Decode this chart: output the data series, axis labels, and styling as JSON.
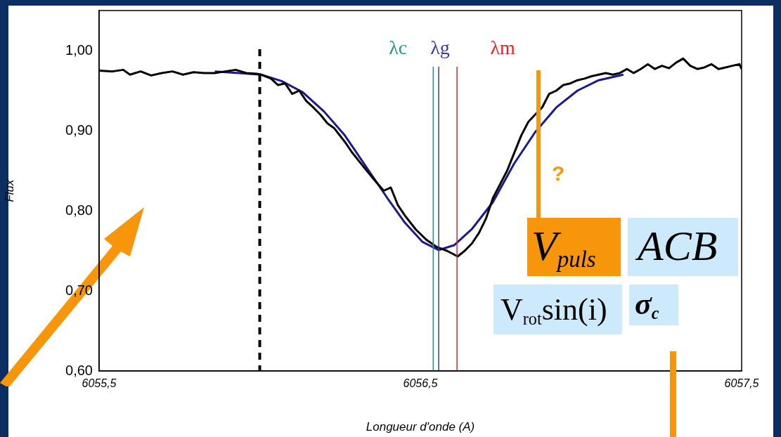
{
  "chart_data": {
    "type": "line",
    "xlabel": "Longueur d'onde (A)",
    "ylabel": "Flux",
    "xlim": [
      6055.5,
      6057.5
    ],
    "xticks": [
      {
        "value": 6055.5,
        "label": "6055,5"
      },
      {
        "value": 6056.5,
        "label": "6056,5"
      },
      {
        "value": 6057.5,
        "label": "6057,5"
      }
    ],
    "ylim": [
      0.6,
      1.05
    ],
    "yticks": [
      {
        "value": 0.6,
        "label": "0,60"
      },
      {
        "value": 0.7,
        "label": "0,70"
      },
      {
        "value": 0.8,
        "label": "0,80"
      },
      {
        "value": 0.9,
        "label": "0,90"
      },
      {
        "value": 1.0,
        "label": "1,00"
      }
    ],
    "grid": false,
    "legend": false,
    "marker": "none",
    "line_style": "solid",
    "series": [
      {
        "color": "#000000",
        "x": [
          6055.5,
          6055.542,
          6055.575,
          6055.596,
          6055.629,
          6055.662,
          6055.695,
          6055.728,
          6055.761,
          6055.794,
          6055.827,
          6055.86,
          6055.893,
          6055.925,
          6055.958,
          6055.991,
          6056.004,
          6056.035,
          6056.057,
          6056.079,
          6056.101,
          6056.123,
          6056.145,
          6056.167,
          6056.189,
          6056.211,
          6056.232,
          6056.265,
          6056.287,
          6056.309,
          6056.331,
          6056.364,
          6056.386,
          6056.408,
          6056.43,
          6056.452,
          6056.485,
          6056.518,
          6056.55,
          6056.583,
          6056.616,
          6056.638,
          6056.66,
          6056.682,
          6056.704,
          6056.726,
          6056.748,
          6056.77,
          6056.792,
          6056.814,
          6056.836,
          6056.857,
          6056.879,
          6056.901,
          6056.923,
          6056.945,
          6056.967,
          6056.989,
          6057.011,
          6057.033,
          6057.055,
          6057.077,
          6057.099,
          6057.121,
          6057.143,
          6057.164,
          6057.186,
          6057.208,
          6057.23,
          6057.252,
          6057.274,
          6057.296,
          6057.318,
          6057.34,
          6057.362,
          6057.384,
          6057.406,
          6057.428,
          6057.45,
          6057.471,
          6057.493,
          6057.5
        ],
        "values": [
          0.975,
          0.974,
          0.976,
          0.97,
          0.974,
          0.969,
          0.972,
          0.974,
          0.97,
          0.973,
          0.972,
          0.972,
          0.974,
          0.976,
          0.972,
          0.971,
          0.97,
          0.965,
          0.957,
          0.959,
          0.946,
          0.95,
          0.937,
          0.929,
          0.92,
          0.909,
          0.903,
          0.886,
          0.873,
          0.862,
          0.851,
          0.835,
          0.825,
          0.829,
          0.807,
          0.794,
          0.777,
          0.764,
          0.755,
          0.75,
          0.743,
          0.75,
          0.759,
          0.772,
          0.79,
          0.816,
          0.833,
          0.85,
          0.872,
          0.894,
          0.911,
          0.92,
          0.929,
          0.946,
          0.95,
          0.957,
          0.959,
          0.963,
          0.965,
          0.968,
          0.97,
          0.972,
          0.97,
          0.972,
          0.977,
          0.972,
          0.977,
          0.983,
          0.977,
          0.981,
          0.978,
          0.985,
          0.99,
          0.981,
          0.977,
          0.979,
          0.983,
          0.977,
          0.979,
          0.981,
          0.983,
          0.977
        ]
      },
      {
        "color": "#1a1a8c",
        "x": [
          6055.86,
          6055.936,
          6056.004,
          6056.068,
          6056.134,
          6056.2,
          6056.265,
          6056.331,
          6056.397,
          6056.452,
          6056.507,
          6056.557,
          6056.605,
          6056.66,
          6056.726,
          6056.792,
          6056.857,
          6056.923,
          6056.989,
          6057.055,
          6057.132
        ],
        "values": [
          0.974,
          0.972,
          0.97,
          0.962,
          0.948,
          0.924,
          0.894,
          0.855,
          0.816,
          0.785,
          0.761,
          0.751,
          0.757,
          0.777,
          0.811,
          0.859,
          0.898,
          0.929,
          0.95,
          0.963,
          0.97
        ]
      }
    ],
    "ref_lines": [
      {
        "axis": "x",
        "value": 6056.0,
        "color": "#000000",
        "line_style": "dashed"
      },
      {
        "axis": "x",
        "value": 6056.54,
        "label": "λc",
        "color": "#1a9a8a"
      },
      {
        "axis": "x",
        "value": 6056.557,
        "label": "λg",
        "color": "#3a3aa8"
      },
      {
        "axis": "x",
        "value": 6056.614,
        "label": "λm",
        "color": "#ee2222"
      }
    ],
    "annotations": [
      "?",
      "V$_{puls}$",
      "ACB",
      "V$_{rot}$sin(i)",
      "σ$_{c}$"
    ]
  }
}
